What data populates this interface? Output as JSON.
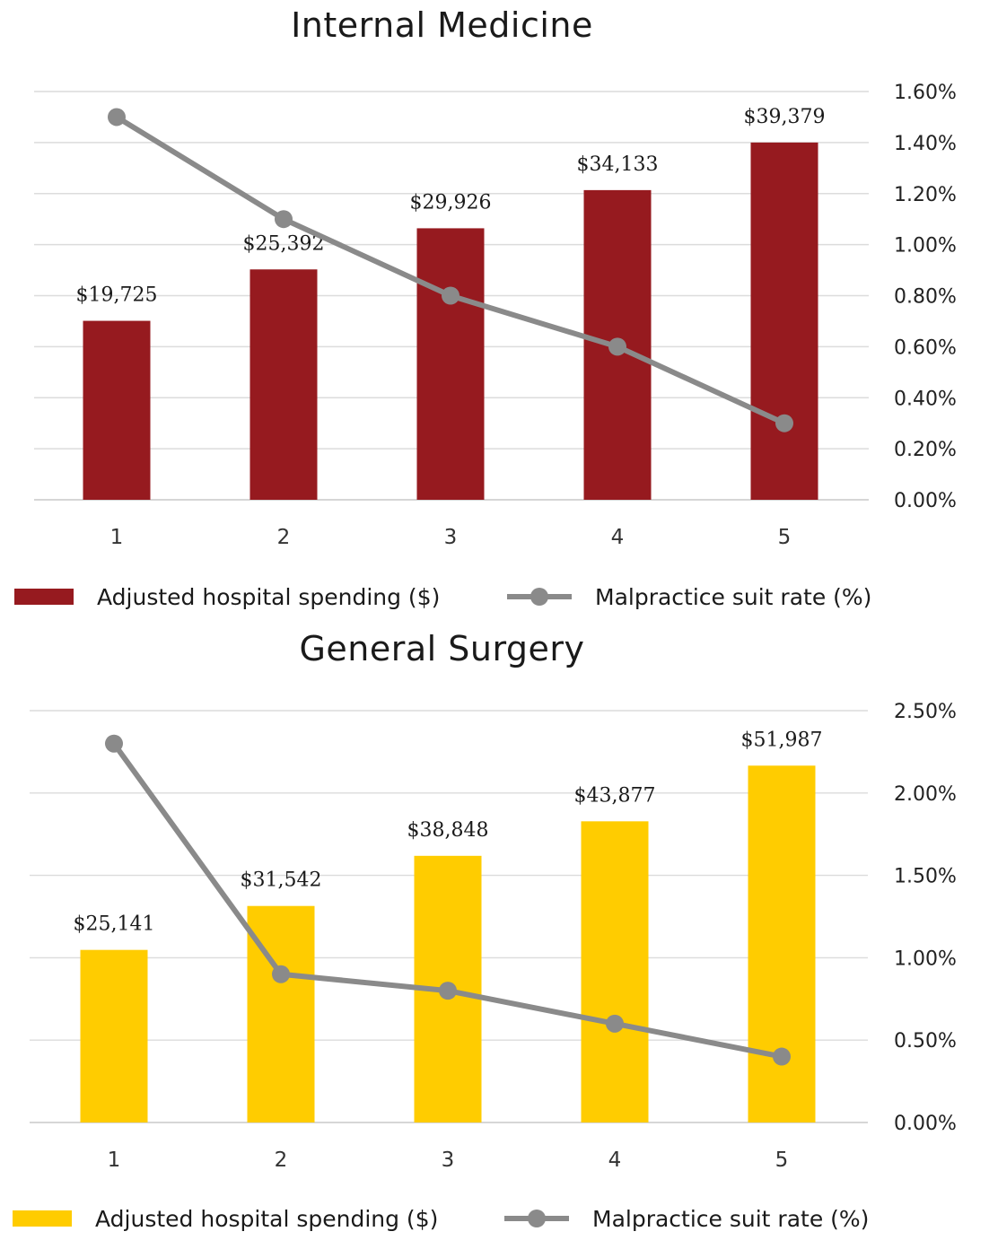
{
  "chart_data": [
    {
      "type": "bar",
      "title": "Internal Medicine",
      "categories": [
        "1",
        "2",
        "3",
        "4",
        "5"
      ],
      "series": [
        {
          "name": "Adjusted hospital spending ($)",
          "kind": "bar",
          "color": "#961A1F",
          "values": [
            19725,
            25392,
            29926,
            34133,
            39379
          ],
          "labels": [
            "$19,725",
            "$25,392",
            "$29,926",
            "$34,133",
            "$39,379"
          ]
        },
        {
          "name": "Malpractice suit rate (%)",
          "kind": "line",
          "color": "#8A8A8A",
          "axis": "right",
          "values": [
            1.5,
            1.1,
            0.8,
            0.6,
            0.3
          ]
        }
      ],
      "y_left_lim": [
        0,
        45000
      ],
      "y_right_lim": [
        0,
        1.6
      ],
      "y_right_ticks": [
        "0.00%",
        "0.20%",
        "0.40%",
        "0.60%",
        "0.80%",
        "1.00%",
        "1.20%",
        "1.40%",
        "1.60%"
      ],
      "grid": true,
      "legend": {
        "position": "bottom",
        "bar_label": "Adjusted hospital spending ($)",
        "line_label": "Malpractice suit rate (%)"
      }
    },
    {
      "type": "bar",
      "title": "General Surgery",
      "categories": [
        "1",
        "2",
        "3",
        "4",
        "5"
      ],
      "series": [
        {
          "name": "Adjusted hospital spending ($)",
          "kind": "bar",
          "color": "#FFCC00",
          "values": [
            25141,
            31542,
            38848,
            43877,
            51987
          ],
          "labels": [
            "$25,141",
            "$31,542",
            "$38,848",
            "$43,877",
            "$51,987"
          ]
        },
        {
          "name": "Malpractice suit rate (%)",
          "kind": "line",
          "color": "#8A8A8A",
          "axis": "right",
          "values": [
            2.3,
            0.9,
            0.8,
            0.6,
            0.4
          ]
        }
      ],
      "y_left_lim": [
        0,
        60000
      ],
      "y_right_lim": [
        0,
        2.5
      ],
      "y_right_ticks": [
        "0.00%",
        "0.50%",
        "1.00%",
        "1.50%",
        "2.00%",
        "2.50%"
      ],
      "grid": true,
      "legend": {
        "position": "bottom",
        "bar_label": "Adjusted hospital spending ($)",
        "line_label": "Malpractice suit rate (%)"
      }
    }
  ]
}
